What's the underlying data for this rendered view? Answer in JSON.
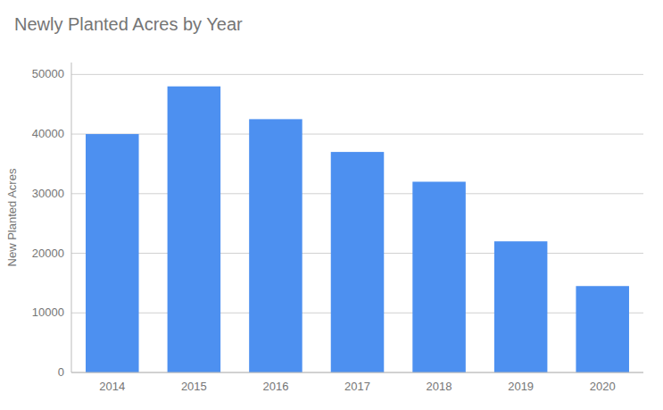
{
  "chart_data": {
    "type": "bar",
    "title": "Newly Planted Acres by Year",
    "ylabel": "New Planted Acres",
    "categories": [
      "2014",
      "2015",
      "2016",
      "2017",
      "2018",
      "2019",
      "2020"
    ],
    "values": [
      40000,
      48000,
      42500,
      37000,
      32000,
      22000,
      14500
    ],
    "color": "#4d90f0",
    "ylim": [
      0,
      52000
    ],
    "yticks": [
      0,
      10000,
      20000,
      30000,
      40000,
      50000
    ],
    "grid": true
  }
}
